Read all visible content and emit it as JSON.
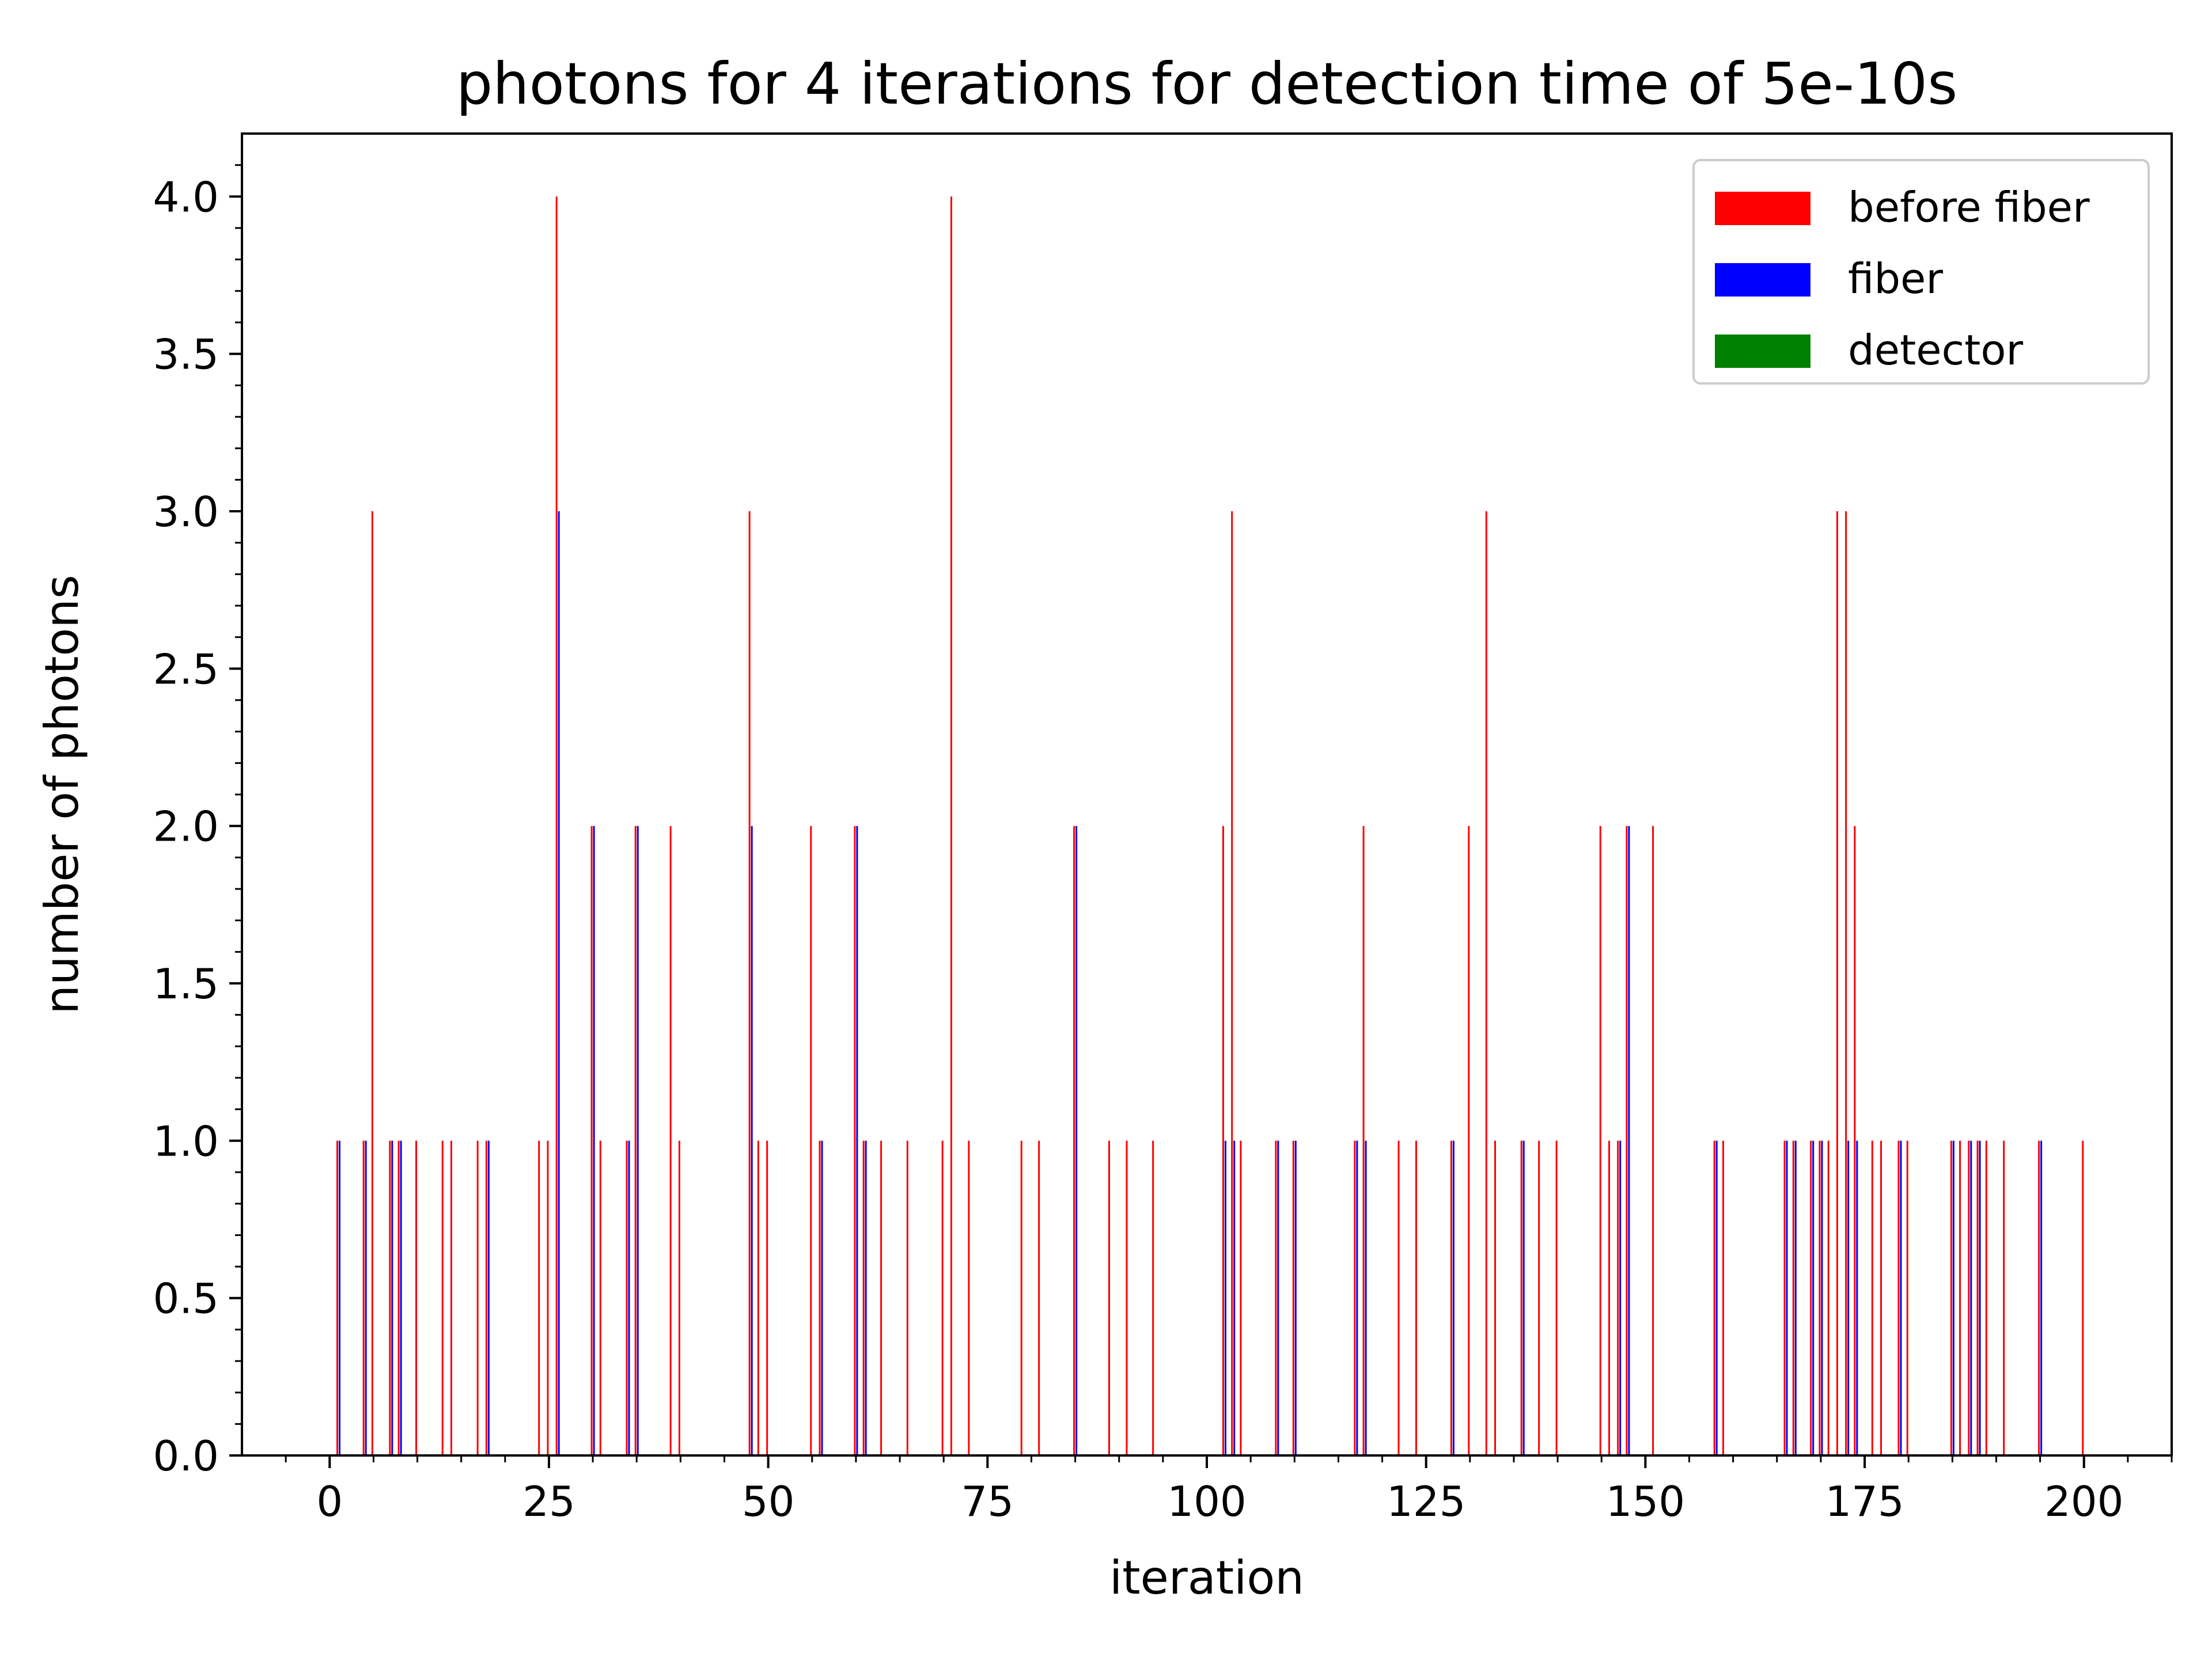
{
  "chart_data": {
    "type": "bar",
    "title": "photons for 4 iterations for detection time of 5e-10s",
    "xlabel": "iteration",
    "ylabel": "number of photons",
    "xlim": [
      -10,
      210
    ],
    "ylim": [
      0,
      4.2
    ],
    "x_ticks": [
      0,
      25,
      50,
      75,
      100,
      125,
      150,
      175,
      200
    ],
    "x_tick_labels": [
      "0",
      "25",
      "50",
      "75",
      "100",
      "125",
      "150",
      "175",
      "200"
    ],
    "y_ticks": [
      0.0,
      0.5,
      1.0,
      1.5,
      2.0,
      2.5,
      3.0,
      3.5,
      4.0
    ],
    "y_tick_labels": [
      "0.0",
      "0.5",
      "1.0",
      "1.5",
      "2.0",
      "2.5",
      "3.0",
      "3.5",
      "4.0"
    ],
    "legend_position": "top-right",
    "grid": false,
    "series": [
      {
        "name": "before fiber",
        "color": "#ff0000",
        "points": [
          [
            1,
            1
          ],
          [
            4,
            1
          ],
          [
            5,
            3
          ],
          [
            7,
            1
          ],
          [
            8,
            1
          ],
          [
            10,
            1
          ],
          [
            13,
            1
          ],
          [
            14,
            1
          ],
          [
            17,
            1
          ],
          [
            18,
            1
          ],
          [
            24,
            1
          ],
          [
            25,
            1
          ],
          [
            26,
            4
          ],
          [
            30,
            2
          ],
          [
            31,
            1
          ],
          [
            34,
            1
          ],
          [
            35,
            2
          ],
          [
            39,
            2
          ],
          [
            40,
            1
          ],
          [
            48,
            3
          ],
          [
            49,
            1
          ],
          [
            50,
            1
          ],
          [
            55,
            2
          ],
          [
            56,
            1
          ],
          [
            60,
            2
          ],
          [
            61,
            1
          ],
          [
            63,
            1
          ],
          [
            66,
            1
          ],
          [
            70,
            1
          ],
          [
            71,
            4
          ],
          [
            73,
            1
          ],
          [
            79,
            1
          ],
          [
            81,
            1
          ],
          [
            85,
            2
          ],
          [
            89,
            1
          ],
          [
            91,
            1
          ],
          [
            94,
            1
          ],
          [
            102,
            2
          ],
          [
            103,
            3
          ],
          [
            104,
            1
          ],
          [
            108,
            1
          ],
          [
            110,
            1
          ],
          [
            117,
            1
          ],
          [
            118,
            2
          ],
          [
            122,
            1
          ],
          [
            124,
            1
          ],
          [
            128,
            1
          ],
          [
            130,
            2
          ],
          [
            132,
            3
          ],
          [
            133,
            1
          ],
          [
            136,
            1
          ],
          [
            138,
            1
          ],
          [
            140,
            1
          ],
          [
            145,
            2
          ],
          [
            146,
            1
          ],
          [
            147,
            1
          ],
          [
            148,
            2
          ],
          [
            151,
            2
          ],
          [
            158,
            1
          ],
          [
            159,
            1
          ],
          [
            166,
            1
          ],
          [
            167,
            1
          ],
          [
            169,
            1
          ],
          [
            170,
            1
          ],
          [
            171,
            1
          ],
          [
            172,
            3
          ],
          [
            173,
            3
          ],
          [
            174,
            2
          ],
          [
            176,
            1
          ],
          [
            177,
            1
          ],
          [
            179,
            1
          ],
          [
            180,
            1
          ],
          [
            185,
            1
          ],
          [
            186,
            1
          ],
          [
            187,
            1
          ],
          [
            188,
            1
          ],
          [
            189,
            1
          ],
          [
            191,
            1
          ],
          [
            195,
            1
          ],
          [
            200,
            1
          ]
        ]
      },
      {
        "name": "fiber",
        "color": "#0000ff",
        "points": [
          [
            1,
            1
          ],
          [
            4,
            1
          ],
          [
            7,
            1
          ],
          [
            8,
            1
          ],
          [
            18,
            1
          ],
          [
            26,
            3
          ],
          [
            30,
            2
          ],
          [
            34,
            1
          ],
          [
            35,
            2
          ],
          [
            48,
            2
          ],
          [
            56,
            1
          ],
          [
            60,
            2
          ],
          [
            61,
            1
          ],
          [
            85,
            2
          ],
          [
            102,
            1
          ],
          [
            103,
            1
          ],
          [
            108,
            1
          ],
          [
            110,
            1
          ],
          [
            117,
            1
          ],
          [
            118,
            1
          ],
          [
            128,
            1
          ],
          [
            136,
            1
          ],
          [
            147,
            1
          ],
          [
            148,
            2
          ],
          [
            158,
            1
          ],
          [
            166,
            1
          ],
          [
            167,
            1
          ],
          [
            169,
            1
          ],
          [
            170,
            1
          ],
          [
            173,
            1
          ],
          [
            174,
            1
          ],
          [
            179,
            1
          ],
          [
            185,
            1
          ],
          [
            187,
            1
          ],
          [
            188,
            1
          ],
          [
            195,
            1
          ]
        ]
      },
      {
        "name": "detector",
        "color": "#008000",
        "points": []
      }
    ]
  }
}
